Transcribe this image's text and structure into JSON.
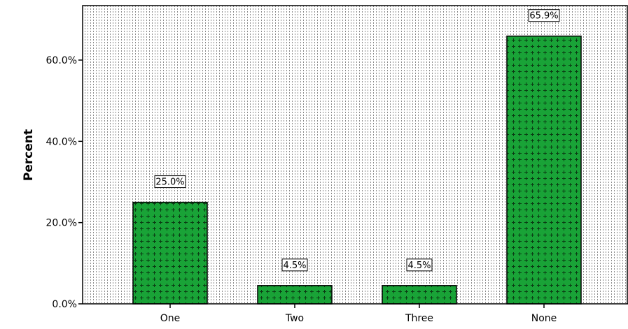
{
  "chart_data": {
    "type": "bar",
    "title": "",
    "xlabel": "",
    "ylabel": "Percent",
    "categories": [
      "One",
      "Two",
      "Three",
      "None"
    ],
    "values": [
      25.0,
      4.5,
      4.5,
      65.9
    ],
    "data_labels": [
      "25.0%",
      "4.5%",
      "4.5%",
      "65.9%"
    ],
    "yticks": [
      0,
      20,
      40,
      60
    ],
    "ytick_labels": [
      "0.0%",
      "20.0%",
      "40.0%",
      "60.0%"
    ],
    "ylim": [
      0,
      72.8
    ],
    "grid": false,
    "legend": "none",
    "colors": {
      "bar_fill": "#19a337",
      "bar_pattern": "#0b3d14",
      "plot_background": "#ffffff",
      "background_pattern": "#8a8a8a",
      "axis": "#000000"
    }
  }
}
